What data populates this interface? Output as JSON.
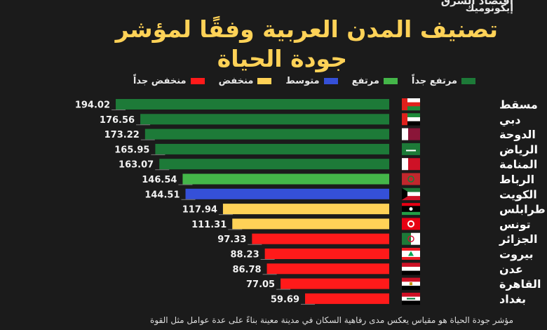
{
  "brand": {
    "top": "اقتصاد الشرق",
    "sub": "إيكونوميك"
  },
  "title": {
    "line1": "تصنيف المدن العربية وفقًا لمؤشر",
    "line2": "جودة الحياة"
  },
  "legend": [
    {
      "label": "مرتفع جداً",
      "color": "#1d7a38"
    },
    {
      "label": "مرتفع",
      "color": "#44b649"
    },
    {
      "label": "متوسط",
      "color": "#3550d8"
    },
    {
      "label": "منخفض",
      "color": "#ffd257"
    },
    {
      "label": "منخفض جداً",
      "color": "#ff1a1a"
    }
  ],
  "footnote": "مؤشر جودة الحياة هو مقياس يعكس مدى رفاهية السكان في مدينة معينة بناءً على عدة عوامل مثل القوة",
  "chart_data": {
    "type": "bar",
    "orientation": "horizontal",
    "title": "تصنيف المدن العربية وفقًا لمؤشر جودة الحياة",
    "categories": [
      "مسقط",
      "دبي",
      "الدوحة",
      "الرياض",
      "المنامة",
      "الرباط",
      "الكويت",
      "طرابلس",
      "تونس",
      "الجزائر",
      "بيروت",
      "عدن",
      "القاهرة",
      "بغداد"
    ],
    "values": [
      194.02,
      176.56,
      173.22,
      165.95,
      163.07,
      146.54,
      144.51,
      117.94,
      111.31,
      97.33,
      88.23,
      86.78,
      77.05,
      59.69
    ],
    "value_labels": [
      "194.02",
      "176.56",
      "173.22",
      "165.95",
      "163.07",
      "146.54",
      "144.51",
      "117.94",
      "111.31",
      "97.33",
      "88.23",
      "86.78",
      "77.05",
      "59.69"
    ],
    "bar_colors": [
      "#1d7a38",
      "#1d7a38",
      "#1d7a38",
      "#1d7a38",
      "#1d7a38",
      "#44b649",
      "#3550d8",
      "#ffd257",
      "#ffd257",
      "#ff1a1a",
      "#ff1a1a",
      "#ff1a1a",
      "#ff1a1a",
      "#ff1a1a"
    ],
    "flags": [
      "oman-flag-icon",
      "uae-flag-icon",
      "qatar-flag-icon",
      "saudi-flag-icon",
      "bahrain-flag-icon",
      "morocco-flag-icon",
      "kuwait-flag-icon",
      "libya-flag-icon",
      "tunisia-flag-icon",
      "algeria-flag-icon",
      "lebanon-flag-icon",
      "yemen-flag-icon",
      "egypt-flag-icon",
      "iraq-flag-icon"
    ],
    "bars_grow_from": "right",
    "grid": false,
    "legend_position": "top"
  }
}
